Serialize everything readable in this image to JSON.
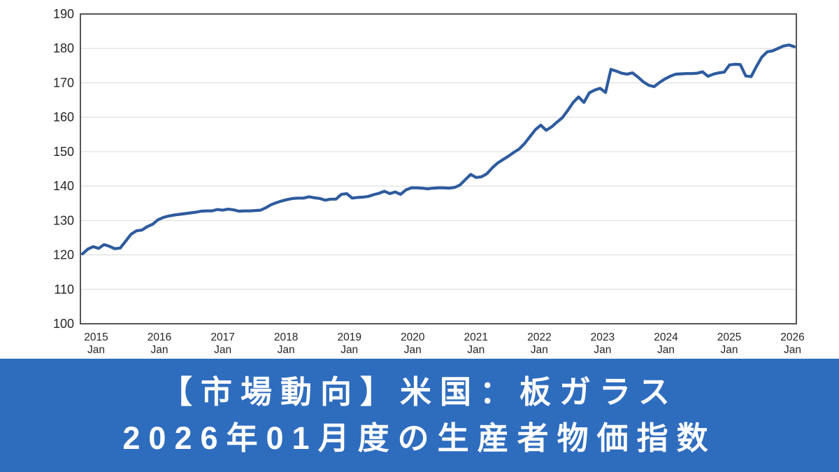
{
  "page": {
    "background_color": "#FFFFFF"
  },
  "banner": {
    "line1": "【市場動向】米国：板ガラス",
    "line2": "2026年01月度の生産者物価指数",
    "background_color": "#2E6CBE",
    "text_color": "#FFFFFF"
  },
  "chart_data": {
    "type": "line",
    "title": "",
    "xlabel": "",
    "ylabel": "",
    "x_start": "2015-01",
    "x_end": "2026-01",
    "frequency": "monthly",
    "values": [
      120.3,
      121.7,
      122.4,
      121.9,
      123.0,
      122.5,
      121.8,
      122.0,
      124.0,
      126.0,
      127.0,
      127.2,
      128.2,
      128.9,
      130.2,
      130.9,
      131.3,
      131.6,
      131.8,
      132.0,
      132.2,
      132.4,
      132.7,
      132.8,
      132.8,
      133.2,
      133.0,
      133.3,
      133.1,
      132.7,
      132.8,
      132.8,
      132.9,
      133.0,
      133.7,
      134.6,
      135.2,
      135.7,
      136.1,
      136.4,
      136.5,
      136.5,
      136.9,
      136.6,
      136.4,
      135.9,
      136.2,
      136.2,
      137.6,
      137.8,
      136.5,
      136.7,
      136.8,
      137.0,
      137.5,
      137.9,
      138.5,
      137.8,
      138.3,
      137.6,
      138.9,
      139.5,
      139.5,
      139.4,
      139.2,
      139.4,
      139.5,
      139.5,
      139.4,
      139.6,
      140.3,
      141.9,
      143.4,
      142.5,
      142.7,
      143.6,
      145.3,
      146.7,
      147.7,
      148.7,
      149.8,
      150.8,
      152.4,
      154.4,
      156.4,
      157.7,
      156.2,
      157.2,
      158.6,
      159.9,
      162.0,
      164.3,
      165.9,
      164.3,
      167.1,
      167.9,
      168.4,
      167.2,
      173.9,
      173.4,
      172.8,
      172.5,
      172.9,
      171.7,
      170.3,
      169.3,
      168.9,
      170.1,
      171.1,
      171.9,
      172.5,
      172.6,
      172.7,
      172.7,
      172.8,
      173.2,
      171.9,
      172.5,
      172.9,
      173.1,
      175.2,
      175.4,
      175.3,
      172.0,
      171.8,
      174.8,
      177.5,
      179.0,
      179.3,
      180.0,
      180.7,
      181.0,
      180.5
    ],
    "x_tick_years": [
      "2015",
      "2016",
      "2017",
      "2018",
      "2019",
      "2020",
      "2021",
      "2022",
      "2023",
      "2024",
      "2025",
      "2026"
    ],
    "x_tick_sub": "Jan",
    "y_ticks": [
      100,
      110,
      120,
      130,
      140,
      150,
      160,
      170,
      180,
      190
    ],
    "ylim": [
      100,
      190
    ],
    "grid": "horizontal",
    "legend": "none",
    "line_color": "#2E5B9E",
    "grid_color": "#D9D9D9",
    "axis_color": "#555555",
    "tick_label_color": "#262626",
    "plot_background": "#FFFFFF"
  }
}
